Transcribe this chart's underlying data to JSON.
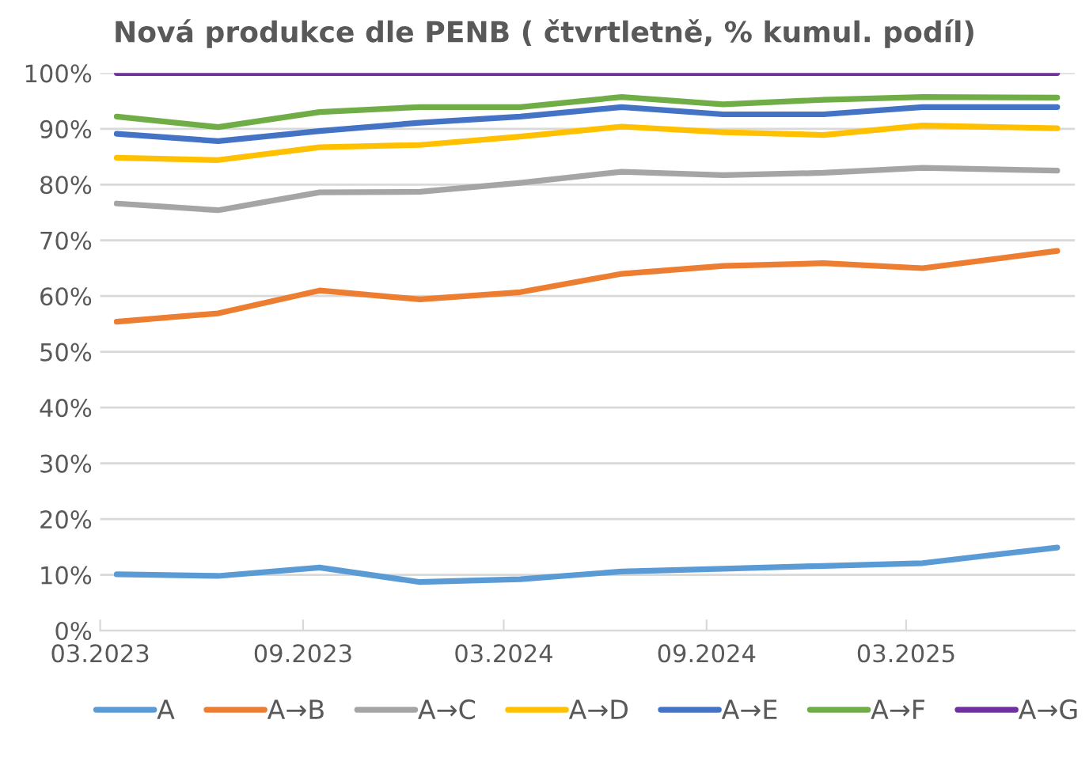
{
  "chart_data": {
    "type": "line",
    "title": "Nová produkce dle PENB ( čtvrtletně, % kumul. podíl)",
    "x": [
      "2023-03-16",
      "2023-06-16",
      "2023-09-16",
      "2023-12-16",
      "2024-03-16",
      "2024-06-16",
      "2024-09-16",
      "2024-12-16",
      "2025-03-16",
      "2025-07-16"
    ],
    "xlim": [
      "2023-03-01",
      "2025-08-01"
    ],
    "xticks": [
      {
        "value": "2023-03-01",
        "label": "03.2023"
      },
      {
        "value": "2023-09-01",
        "label": "09.2023"
      },
      {
        "value": "2024-03-01",
        "label": "03.2024"
      },
      {
        "value": "2024-09-01",
        "label": "09.2024"
      },
      {
        "value": "2025-03-01",
        "label": "03.2025"
      }
    ],
    "ylim": [
      0,
      100
    ],
    "yticks": [
      {
        "value": 0,
        "label": "0%"
      },
      {
        "value": 10,
        "label": "10%"
      },
      {
        "value": 20,
        "label": "20%"
      },
      {
        "value": 30,
        "label": "30%"
      },
      {
        "value": 40,
        "label": "40%"
      },
      {
        "value": 50,
        "label": "50%"
      },
      {
        "value": 60,
        "label": "60%"
      },
      {
        "value": 70,
        "label": "70%"
      },
      {
        "value": 80,
        "label": "80%"
      },
      {
        "value": 90,
        "label": "90%"
      },
      {
        "value": 100,
        "label": "100%"
      }
    ],
    "grid": "y",
    "legend": "bottom",
    "marker": "none",
    "line_style": "solid",
    "series": [
      {
        "name": "A",
        "color": "#5b9bd5",
        "values": [
          10.1,
          9.8,
          11.3,
          8.7,
          9.2,
          10.6,
          11.1,
          11.6,
          12.1,
          14.9
        ]
      },
      {
        "name": "A→B",
        "color": "#ed7d31",
        "values": [
          55.4,
          56.9,
          61.0,
          59.4,
          60.7,
          64.0,
          65.4,
          65.9,
          65.0,
          68.1
        ]
      },
      {
        "name": "A→C",
        "color": "#a5a5a5",
        "values": [
          76.6,
          75.4,
          78.6,
          78.7,
          80.3,
          82.3,
          81.7,
          82.1,
          83.0,
          82.5
        ]
      },
      {
        "name": "A→D",
        "color": "#ffc000",
        "values": [
          84.8,
          84.4,
          86.7,
          87.1,
          88.6,
          90.4,
          89.4,
          88.9,
          90.6,
          90.1
        ]
      },
      {
        "name": "A→E",
        "color": "#4472c4",
        "values": [
          89.1,
          87.8,
          89.6,
          91.1,
          92.2,
          93.9,
          92.6,
          92.6,
          93.9,
          93.9
        ]
      },
      {
        "name": "A→F",
        "color": "#70ad47",
        "values": [
          92.2,
          90.3,
          93.0,
          93.9,
          93.9,
          95.7,
          94.4,
          95.2,
          95.7,
          95.6
        ]
      },
      {
        "name": "A→G",
        "color": "#7030a0",
        "values": [
          100,
          100,
          100,
          100,
          100,
          100,
          100,
          100,
          100,
          100
        ]
      }
    ]
  }
}
